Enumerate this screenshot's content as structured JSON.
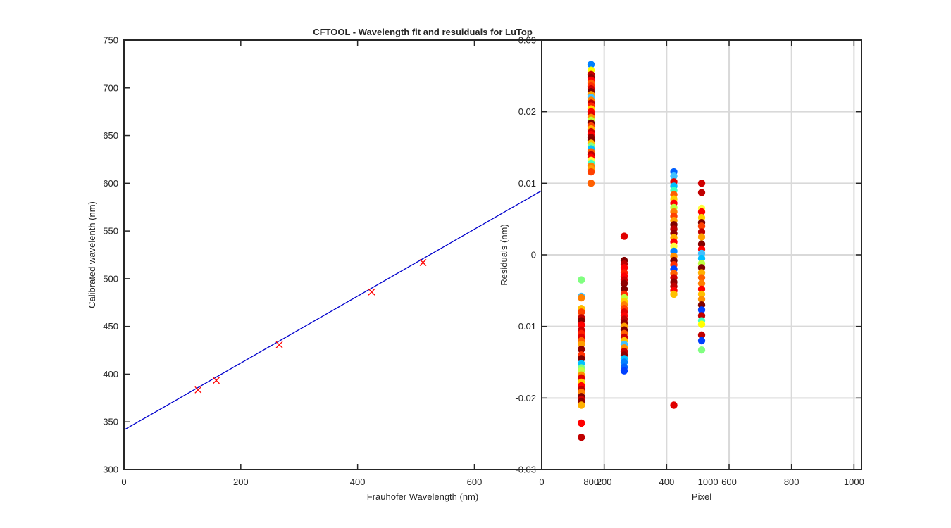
{
  "chart_data": [
    {
      "type": "line",
      "title": "CFTOOL - Wavelength fit and resuiduals for LuTop",
      "xlabel": "Frauhofer Wavelength (nm)",
      "ylabel": "Calibrated wavelenth (nm)",
      "xlim": [
        0,
        1024
      ],
      "ylim": [
        300,
        750
      ],
      "xticks": [
        0,
        200,
        400,
        600,
        800,
        1000
      ],
      "yticks": [
        300,
        350,
        400,
        450,
        500,
        550,
        600,
        650,
        700,
        750
      ],
      "grid": false,
      "series": [
        {
          "kind": "line",
          "color": "#0000cc",
          "x": [
            0,
            1024
          ],
          "y": [
            341.5,
            700.5
          ]
        },
        {
          "kind": "markers",
          "marker": "x",
          "color": "#ff0000",
          "x": [
            127,
            158,
            266,
            424,
            512
          ],
          "y": [
            383.5,
            393.4,
            430.8,
            486.1,
            516.9
          ]
        }
      ]
    },
    {
      "type": "scatter",
      "title": "",
      "xlabel": "Pixel",
      "ylabel": "Residuals  (nm)",
      "xlim": [
        0,
        1024
      ],
      "ylim": [
        -0.03,
        0.03
      ],
      "xticks": [
        0,
        200,
        400,
        600,
        800,
        1000
      ],
      "yticks": [
        -0.03,
        -0.02,
        -0.01,
        0,
        0.01,
        0.02,
        0.03
      ],
      "ytick_labels": [
        "-0.03",
        "-0.02",
        "-0.01",
        "0",
        "0.01",
        "0.02",
        "0.03"
      ],
      "grid": true,
      "series": [
        {
          "x": 127,
          "y": [
            -0.0035,
            -0.0058,
            -0.006,
            -0.0075,
            -0.008,
            -0.0088,
            -0.0092,
            -0.0098,
            -0.0105,
            -0.011,
            -0.0115,
            -0.012,
            -0.0125,
            -0.0132,
            -0.014,
            -0.0145,
            -0.0152,
            -0.0158,
            -0.0162,
            -0.0168,
            -0.0172,
            -0.0178,
            -0.0183,
            -0.0188,
            -0.0192,
            -0.0198,
            -0.0202,
            -0.0205,
            -0.021,
            -0.0235,
            -0.0255
          ],
          "colors": [
            "#80ff80",
            "#40c0ff",
            "#ff8000",
            "#ffc000",
            "#ff4000",
            "#c00000",
            "#800000",
            "#ff0000",
            "#d00000",
            "#ff2000",
            "#e00000",
            "#ff6000",
            "#ffa000",
            "#900000",
            "#ff3000",
            "#800000",
            "#00c0ff",
            "#80ff80",
            "#c0ff40",
            "#ff9000",
            "#e00000",
            "#ffd000",
            "#ff0000",
            "#c00000",
            "#ff8000",
            "#800000",
            "#d00000",
            "#900000",
            "#ffb000",
            "#ff0000",
            "#c00000"
          ]
        },
        {
          "x": 158,
          "y": [
            0.0266,
            0.0258,
            0.0252,
            0.0248,
            0.0244,
            0.024,
            0.0236,
            0.0232,
            0.0228,
            0.0224,
            0.022,
            0.0216,
            0.0212,
            0.0208,
            0.0204,
            0.02,
            0.0196,
            0.0192,
            0.0188,
            0.0184,
            0.018,
            0.0176,
            0.0172,
            0.0168,
            0.0164,
            0.016,
            0.0156,
            0.0152,
            0.0148,
            0.0144,
            0.014,
            0.0136,
            0.0132,
            0.0128,
            0.0124,
            0.012,
            0.0116,
            0.01
          ],
          "colors": [
            "#0080ff",
            "#ffff00",
            "#c00000",
            "#900000",
            "#ff0000",
            "#ff6000",
            "#ff3000",
            "#d00000",
            "#800000",
            "#ffa000",
            "#40c0ff",
            "#ff8000",
            "#c00000",
            "#ff2000",
            "#ffd000",
            "#ff0000",
            "#e00000",
            "#ff9000",
            "#c0ff40",
            "#800000",
            "#ff4000",
            "#ffb000",
            "#d00000",
            "#ff0000",
            "#900000",
            "#800000",
            "#ffc000",
            "#80ff80",
            "#00c0ff",
            "#ff6000",
            "#c00000",
            "#ff0000",
            "#ffff40",
            "#40ffc0",
            "#ff8000",
            "#ffa000",
            "#ff4000",
            "#ff6000"
          ]
        },
        {
          "x": 264,
          "y": [
            0.0026,
            -0.0008,
            -0.0013,
            -0.0018,
            -0.0025,
            -0.003,
            -0.0035,
            -0.004,
            -0.0048,
            -0.0055,
            -0.006,
            -0.0065,
            -0.007,
            -0.0075,
            -0.008,
            -0.0085,
            -0.009,
            -0.0095,
            -0.01,
            -0.0105,
            -0.011,
            -0.0115,
            -0.012,
            -0.0125,
            -0.013,
            -0.0135,
            -0.014,
            -0.0145,
            -0.015,
            -0.0157,
            -0.0162
          ],
          "colors": [
            "#e00000",
            "#800000",
            "#c00000",
            "#ff0000",
            "#ff2000",
            "#ff0000",
            "#d00000",
            "#900000",
            "#800000",
            "#ff3000",
            "#c0ff40",
            "#ffd000",
            "#ff8000",
            "#ff4000",
            "#e00000",
            "#ff0000",
            "#c00000",
            "#900000",
            "#ffa000",
            "#800000",
            "#ff6000",
            "#d00000",
            "#ffc000",
            "#40c0ff",
            "#ff9000",
            "#c00000",
            "#900000",
            "#00c0ff",
            "#0080ff",
            "#0060ff",
            "#0040ff"
          ]
        },
        {
          "x": 423,
          "y": [
            0.0116,
            0.011,
            0.0102,
            0.0096,
            0.009,
            0.0084,
            0.0078,
            0.0072,
            0.0066,
            0.006,
            0.0054,
            0.0048,
            0.0042,
            0.0036,
            0.003,
            0.0024,
            0.0018,
            0.0012,
            0.0005,
            -0.0002,
            -0.0008,
            -0.0014,
            -0.002,
            -0.0026,
            -0.0032,
            -0.0038,
            -0.0044,
            -0.005,
            -0.0055,
            -0.021
          ],
          "colors": [
            "#0060ff",
            "#40c0ff",
            "#e00000",
            "#00c0ff",
            "#40ffc0",
            "#ff6000",
            "#ffd000",
            "#ff0000",
            "#c0ff40",
            "#ff8000",
            "#ff4000",
            "#ffa000",
            "#800000",
            "#c00000",
            "#900000",
            "#ffb000",
            "#ff0000",
            "#ffff40",
            "#0080ff",
            "#ff9000",
            "#800000",
            "#ff3000",
            "#0040ff",
            "#ff6000",
            "#d00000",
            "#900000",
            "#c00000",
            "#ff0000",
            "#ffc000",
            "#e00000"
          ]
        },
        {
          "x": 512,
          "y": [
            0.01,
            0.0087,
            0.0065,
            0.006,
            0.0052,
            0.0045,
            0.004,
            0.0032,
            0.0025,
            0.0015,
            0.0008,
            0.0002,
            -0.0005,
            -0.0012,
            -0.0018,
            -0.0025,
            -0.0032,
            -0.004,
            -0.0048,
            -0.0055,
            -0.0062,
            -0.007,
            -0.0077,
            -0.0085,
            -0.0092,
            -0.0097,
            -0.0112,
            -0.012,
            -0.0133
          ],
          "colors": [
            "#d00000",
            "#c00000",
            "#ffff40",
            "#ff0000",
            "#ffd000",
            "#800000",
            "#ff4000",
            "#c00000",
            "#ffa000",
            "#800000",
            "#ff0000",
            "#40c0ff",
            "#00c0ff",
            "#c0ff40",
            "#800000",
            "#ffb000",
            "#ff6000",
            "#ff8000",
            "#ff0000",
            "#ffc000",
            "#ff9000",
            "#800000",
            "#0040ff",
            "#c00000",
            "#40ffc0",
            "#ffff00",
            "#c00000",
            "#0040ff",
            "#80ff80"
          ]
        }
      ]
    }
  ]
}
